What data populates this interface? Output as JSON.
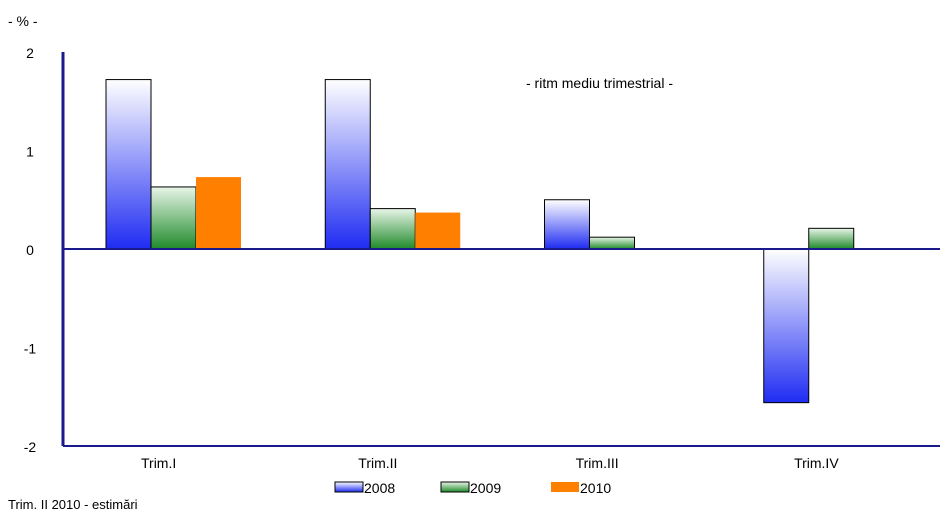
{
  "chart_data": {
    "type": "bar",
    "unit_label": "- % -",
    "annotation": "- ritm  mediu trimestrial -",
    "footnote": "Trim. II 2010 - estimări",
    "categories": [
      "Trim.I",
      "Trim.II",
      "Trim.III",
      "Trim.IV"
    ],
    "yticks": [
      "2",
      "1",
      "0",
      "-1",
      "-2"
    ],
    "ylim": [
      -2,
      2
    ],
    "series": [
      {
        "name": "2008",
        "values": [
          1.72,
          1.72,
          0.5,
          -1.56
        ],
        "color": "#2b3cf5"
      },
      {
        "name": "2009",
        "values": [
          0.63,
          0.41,
          0.12,
          0.21
        ],
        "color": "#1f8a2a"
      },
      {
        "name": "2010",
        "values": [
          0.73,
          0.37,
          null,
          null
        ],
        "color": "#ff8000"
      }
    ],
    "axis_color": "#1a1a8c",
    "legend_position": "bottom"
  }
}
